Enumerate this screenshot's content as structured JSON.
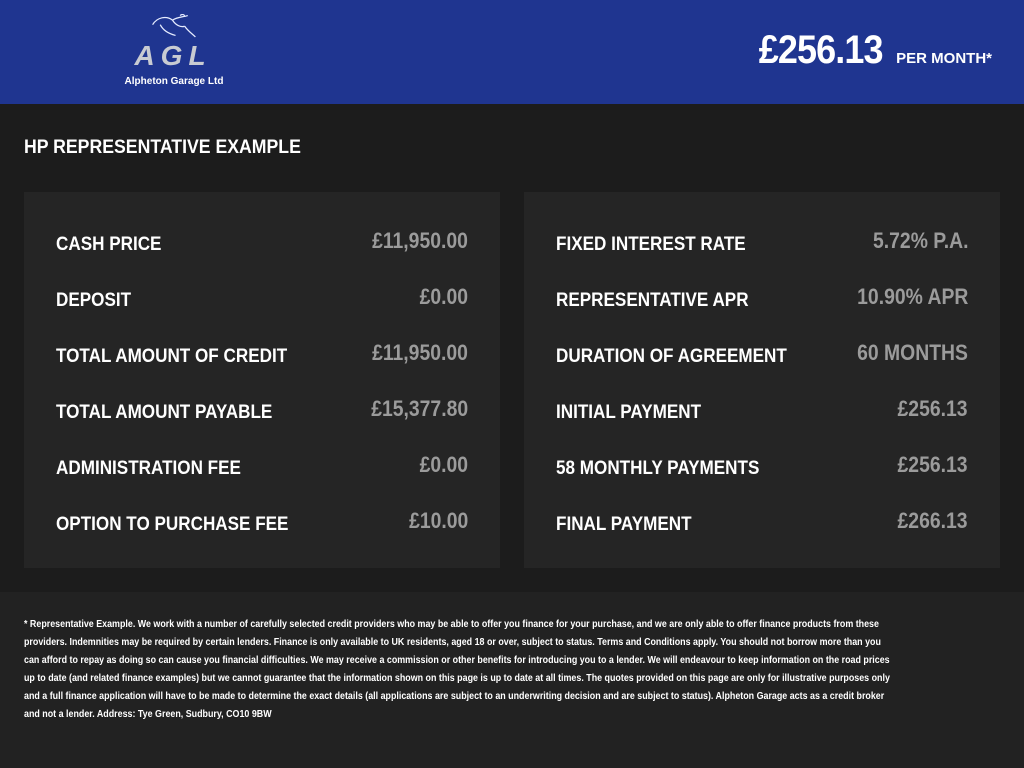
{
  "header": {
    "logo_text": "AGL",
    "logo_subtitle": "Alpheton Garage Ltd",
    "monthly_price": "£256.13",
    "per_month_label": "PER MONTH*",
    "colors": {
      "header_bg": "#1f3590"
    }
  },
  "section_title": "HP REPRESENTATIVE EXAMPLE",
  "left_panel": [
    {
      "label": "CASH PRICE",
      "value": "£11,950.00"
    },
    {
      "label": "DEPOSIT",
      "value": "£0.00"
    },
    {
      "label": "TOTAL AMOUNT OF CREDIT",
      "value": "£11,950.00"
    },
    {
      "label": "TOTAL AMOUNT PAYABLE",
      "value": "£15,377.80"
    },
    {
      "label": "ADMINISTRATION FEE",
      "value": "£0.00"
    },
    {
      "label": "OPTION TO PURCHASE FEE",
      "value": "£10.00"
    }
  ],
  "right_panel": [
    {
      "label": "FIXED INTEREST RATE",
      "value": "5.72% P.A."
    },
    {
      "label": "REPRESENTATIVE APR",
      "value": "10.90% APR"
    },
    {
      "label": "DURATION OF AGREEMENT",
      "value": "60 MONTHS"
    },
    {
      "label": "INITIAL PAYMENT",
      "value": "£256.13"
    },
    {
      "label": "58 MONTHLY PAYMENTS",
      "value": "£256.13"
    },
    {
      "label": "FINAL PAYMENT",
      "value": "£266.13"
    }
  ],
  "disclaimer": "* Representative Example. We work with a number of carefully selected credit providers who may be able to offer you finance for your purchase, and we are only able to offer finance products from these providers. Indemnities may be required by certain lenders. Finance is only available to UK residents, aged 18 or over, subject to status. Terms and Conditions apply. You should not borrow more than you can afford to repay as doing so can cause you financial difficulties. We may receive a commission or other benefits for introducing you to a lender. We will endeavour to keep information on the road prices up to date (and related finance examples) but we cannot guarantee that the information shown on this page is up to date at all times. The quotes provided on this page are only for illustrative purposes only and a full finance application will have to be made to determine the exact details (all applications are subject to an underwriting decision and are subject to status). Alpheton Garage acts as a credit broker and not a lender. Address: Tye Green, Sudbury, CO10 9BW"
}
